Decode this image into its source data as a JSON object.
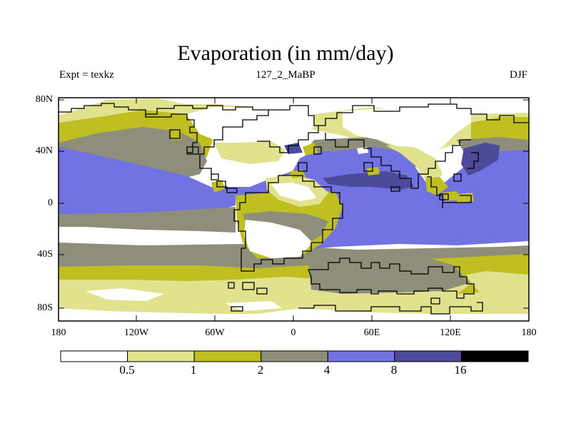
{
  "title": "Evaporation (in mm/day)",
  "subtitle_left": "Expt = texkz",
  "subtitle_center": "127_2_MaBP",
  "subtitle_right": "DJF",
  "y_ticks": [
    "80N",
    "40N",
    "0",
    "40S",
    "80S"
  ],
  "x_ticks": [
    "180",
    "120W",
    "60W",
    "0",
    "60E",
    "120E",
    "180"
  ],
  "colorbar": {
    "colors": [
      "#ffffff",
      "#e0e28e",
      "#bfbf21",
      "#8e8e7b",
      "#7272e3",
      "#4b4b9a",
      "#000000"
    ],
    "labels": [
      "0.5",
      "1",
      "2",
      "4",
      "8",
      "16"
    ]
  },
  "colors": {
    "white": "#ffffff",
    "lightyellow": "#e0e28e",
    "olive": "#bfbf21",
    "gray": "#8e8e7b",
    "blue": "#7272e3",
    "darkblue": "#4b4b9a"
  }
}
